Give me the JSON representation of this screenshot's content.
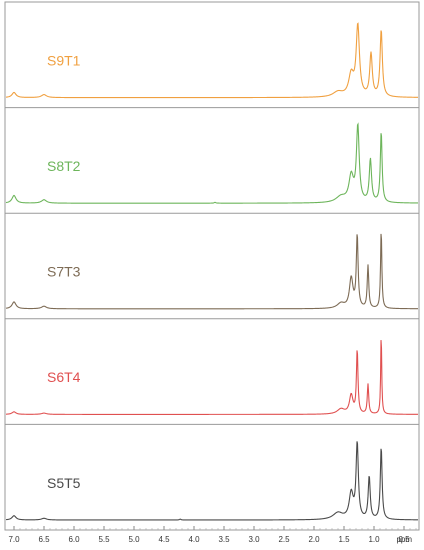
{
  "chart_data": {
    "type": "line",
    "title": "",
    "xlabel": "ppm",
    "ylabel": "",
    "x_reversed": true,
    "xlim": [
      7.15,
      0.25
    ],
    "xticks": [
      "7.0",
      "6.5",
      "6.0",
      "5.5",
      "5.0",
      "4.5",
      "4.0",
      "3.5",
      "3.0",
      "2.5",
      "2.0",
      "1.5",
      "1.0",
      "0.5"
    ],
    "grid": false,
    "legend": "none",
    "series": [
      {
        "name": "S9T1",
        "color": "#F0A040",
        "peaks": [
          {
            "ppm": 7.0,
            "height": 0.06,
            "width": 0.08
          },
          {
            "ppm": 6.5,
            "height": 0.035,
            "width": 0.1
          },
          {
            "ppm": 1.6,
            "height": 0.06,
            "width": 0.2
          },
          {
            "ppm": 1.38,
            "height": 0.25,
            "width": 0.1
          },
          {
            "ppm": 1.27,
            "height": 0.82,
            "width": 0.065
          },
          {
            "ppm": 1.05,
            "height": 0.5,
            "width": 0.05
          },
          {
            "ppm": 0.88,
            "height": 0.78,
            "width": 0.045
          }
        ]
      },
      {
        "name": "S8T2",
        "color": "#6DB55B",
        "peaks": [
          {
            "ppm": 7.0,
            "height": 0.09,
            "width": 0.08
          },
          {
            "ppm": 6.5,
            "height": 0.04,
            "width": 0.1
          },
          {
            "ppm": 3.65,
            "height": 0.01,
            "width": 0.03
          },
          {
            "ppm": 1.55,
            "height": 0.07,
            "width": 0.2
          },
          {
            "ppm": 1.38,
            "height": 0.3,
            "width": 0.09
          },
          {
            "ppm": 1.27,
            "height": 0.88,
            "width": 0.055
          },
          {
            "ppm": 1.06,
            "height": 0.5,
            "width": 0.045
          },
          {
            "ppm": 0.88,
            "height": 0.83,
            "width": 0.035
          }
        ]
      },
      {
        "name": "S7T3",
        "color": "#7D6B55",
        "peaks": [
          {
            "ppm": 7.0,
            "height": 0.08,
            "width": 0.08
          },
          {
            "ppm": 6.5,
            "height": 0.03,
            "width": 0.1
          },
          {
            "ppm": 1.55,
            "height": 0.06,
            "width": 0.15
          },
          {
            "ppm": 1.38,
            "height": 0.35,
            "width": 0.07
          },
          {
            "ppm": 1.28,
            "height": 0.85,
            "width": 0.035
          },
          {
            "ppm": 1.1,
            "height": 0.5,
            "width": 0.03
          },
          {
            "ppm": 0.88,
            "height": 0.93,
            "width": 0.025
          }
        ]
      },
      {
        "name": "S6T4",
        "color": "#E05050",
        "peaks": [
          {
            "ppm": 7.0,
            "height": 0.03,
            "width": 0.08
          },
          {
            "ppm": 6.5,
            "height": 0.015,
            "width": 0.1
          },
          {
            "ppm": 1.55,
            "height": 0.06,
            "width": 0.15
          },
          {
            "ppm": 1.38,
            "height": 0.22,
            "width": 0.07
          },
          {
            "ppm": 1.28,
            "height": 0.75,
            "width": 0.03
          },
          {
            "ppm": 1.1,
            "height": 0.35,
            "width": 0.028
          },
          {
            "ppm": 0.88,
            "height": 0.96,
            "width": 0.02
          }
        ]
      },
      {
        "name": "S5T5",
        "color": "#4A4A4A",
        "peaks": [
          {
            "ppm": 7.0,
            "height": 0.05,
            "width": 0.08
          },
          {
            "ppm": 6.5,
            "height": 0.02,
            "width": 0.1
          },
          {
            "ppm": 4.23,
            "height": 0.01,
            "width": 0.03
          },
          {
            "ppm": 1.6,
            "height": 0.08,
            "width": 0.2
          },
          {
            "ppm": 1.38,
            "height": 0.3,
            "width": 0.08
          },
          {
            "ppm": 1.28,
            "height": 0.88,
            "width": 0.045
          },
          {
            "ppm": 1.08,
            "height": 0.5,
            "width": 0.04
          },
          {
            "ppm": 0.88,
            "height": 0.85,
            "width": 0.035
          }
        ]
      }
    ]
  }
}
